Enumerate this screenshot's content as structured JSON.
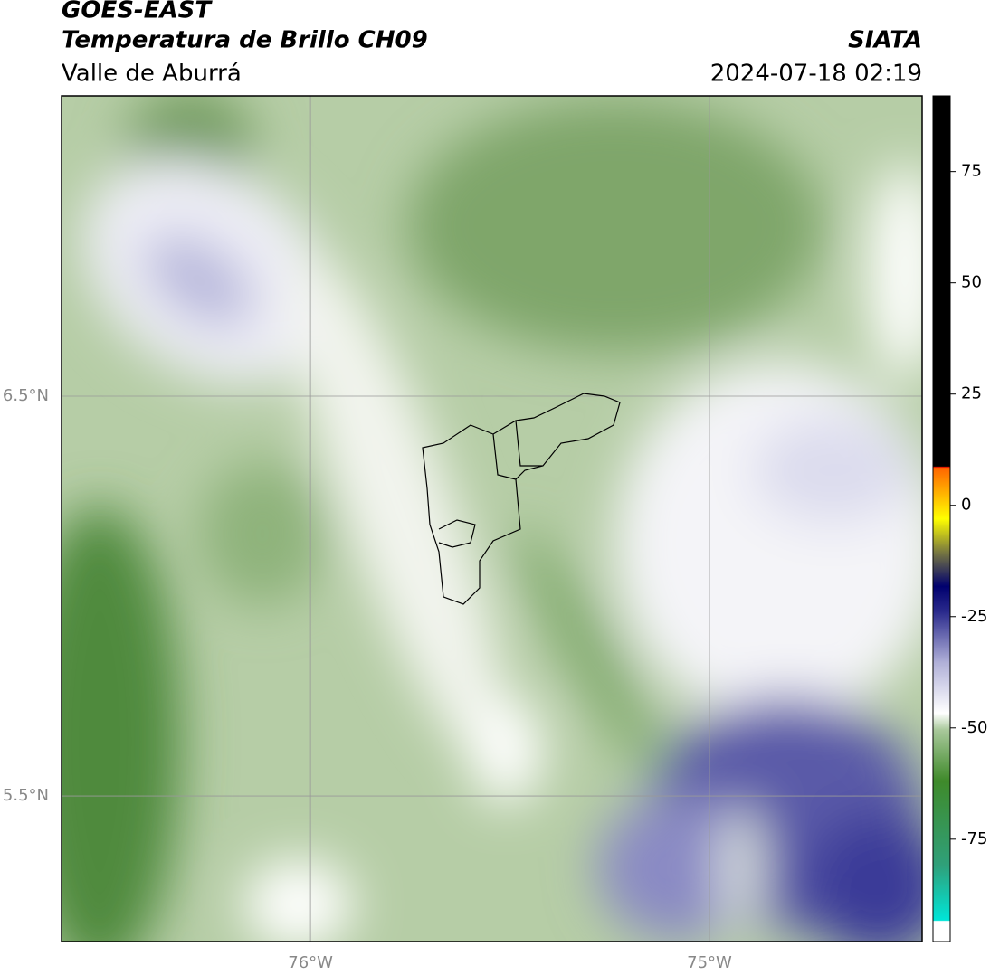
{
  "header": {
    "title": "GOES-EAST",
    "subtitle": "Temperatura de Brillo CH09",
    "region": "Valle de Aburrá",
    "source": "SIATA",
    "datetime": "2024-07-18 02:19"
  },
  "map": {
    "xlim": [
      -76.624,
      -74.467
    ],
    "ylim": [
      5.136,
      7.251
    ],
    "xticks": [
      {
        "value": -76,
        "label": "76°W"
      },
      {
        "value": -75,
        "label": "75°W"
      }
    ],
    "yticks": [
      {
        "value": 5.5,
        "label": "5.5°N"
      },
      {
        "value": 6.5,
        "label": "6.5°N"
      }
    ],
    "grid": true
  },
  "colorbar": {
    "lim": [
      -98,
      92
    ],
    "ticks": [
      -75,
      -50,
      -25,
      0,
      25,
      50,
      75
    ]
  }
}
